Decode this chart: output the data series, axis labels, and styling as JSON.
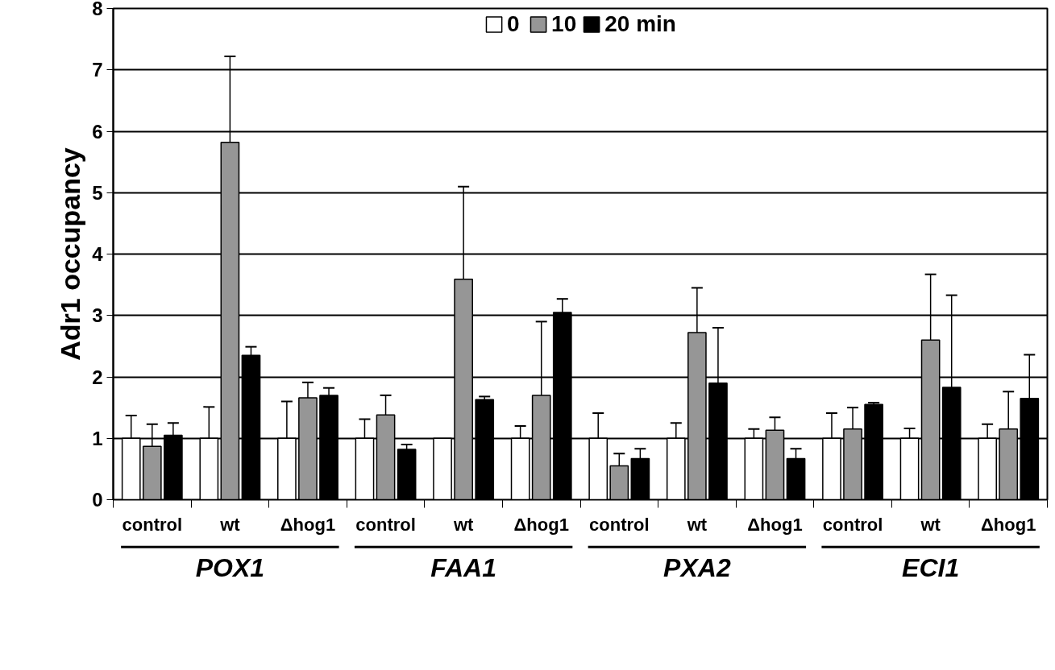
{
  "chart_data": {
    "type": "bar",
    "ylabel": "Adr1 occupancy",
    "categories": [
      "control",
      "wt",
      "Δhog1",
      "control",
      "wt",
      "Δhog1",
      "control",
      "wt",
      "Δhog1",
      "control",
      "wt",
      "Δhog1"
    ],
    "series": [
      {
        "name": "0",
        "color": "#ffffff",
        "values": [
          1.0,
          1.0,
          1.0,
          1.0,
          1.0,
          1.0,
          1.0,
          1.0,
          1.0,
          1.0,
          1.0,
          1.0
        ],
        "errors": [
          [
            1.0,
            1.37
          ],
          [
            1.0,
            1.51
          ],
          [
            1.0,
            1.6
          ],
          [
            1.0,
            1.31
          ],
          null,
          [
            1.0,
            1.2
          ],
          [
            1.0,
            1.41
          ],
          [
            1.0,
            1.25
          ],
          [
            1.0,
            1.15
          ],
          [
            1.0,
            1.41
          ],
          [
            1.0,
            1.16
          ],
          [
            1.0,
            1.23
          ]
        ]
      },
      {
        "name": "10",
        "color": "#969696",
        "values": [
          0.87,
          5.82,
          1.66,
          1.38,
          3.59,
          1.7,
          0.55,
          2.72,
          1.13,
          1.15,
          2.6,
          1.15
        ],
        "errors": [
          [
            0.87,
            1.23
          ],
          [
            5.82,
            7.22
          ],
          [
            1.66,
            1.91
          ],
          [
            1.38,
            1.7
          ],
          [
            3.59,
            5.1
          ],
          [
            1.7,
            2.9
          ],
          [
            0.55,
            0.75
          ],
          [
            2.72,
            3.45
          ],
          [
            1.13,
            1.34
          ],
          [
            1.15,
            1.5
          ],
          [
            2.6,
            3.67
          ],
          [
            1.15,
            1.76
          ]
        ]
      },
      {
        "name": "20 min",
        "color": "#000000",
        "values": [
          1.05,
          2.35,
          1.7,
          0.82,
          1.63,
          3.05,
          0.67,
          1.9,
          0.67,
          1.55,
          1.83,
          1.65
        ],
        "errors": [
          [
            1.05,
            1.25
          ],
          [
            2.35,
            2.49
          ],
          [
            1.7,
            1.82
          ],
          [
            0.82,
            0.9
          ],
          [
            1.63,
            1.68
          ],
          [
            3.05,
            3.27
          ],
          [
            0.67,
            0.83
          ],
          [
            1.9,
            2.8
          ],
          [
            0.67,
            0.83
          ],
          [
            1.55,
            1.58
          ],
          [
            1.83,
            3.33
          ],
          [
            1.65,
            2.36
          ]
        ]
      }
    ],
    "annotations": [
      "POX1",
      "FAA1",
      "PXA2",
      "ECI1"
    ],
    "ylim": [
      0,
      8
    ],
    "yticks": [
      0,
      1,
      2,
      3,
      4,
      5,
      6,
      7,
      8
    ],
    "grid": "y",
    "legend": "top"
  }
}
